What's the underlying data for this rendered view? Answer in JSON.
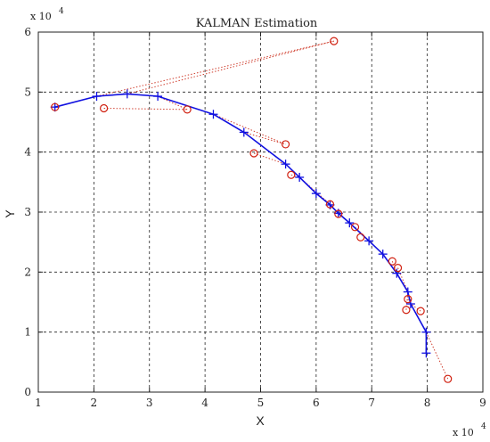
{
  "chart_data": {
    "type": "line",
    "title": "KALMAN Estimation",
    "xlabel": "X",
    "ylabel": "Y",
    "x_multiplier_label": "x 10",
    "x_multiplier_exponent": "4",
    "y_multiplier_label": "x 10",
    "y_multiplier_exponent": "4",
    "xlim": [
      1,
      9
    ],
    "ylim": [
      0,
      6
    ],
    "x_ticks": [
      1,
      2,
      3,
      4,
      5,
      6,
      7,
      8,
      9
    ],
    "y_ticks": [
      0,
      1,
      2,
      3,
      4,
      5,
      6
    ],
    "grid": true,
    "colors": {
      "estimate": "#1010e0",
      "measurement": "#d02010",
      "link": "#d04030"
    },
    "series": [
      {
        "marker": "plus",
        "style": "solid",
        "points": [
          [
            1.3,
            4.75
          ],
          [
            2.05,
            4.93
          ],
          [
            2.6,
            4.97
          ],
          [
            3.15,
            4.93
          ],
          [
            4.15,
            4.63
          ],
          [
            4.7,
            4.33
          ],
          [
            5.45,
            3.8
          ],
          [
            5.7,
            3.58
          ],
          [
            6.0,
            3.31
          ],
          [
            6.25,
            3.12
          ],
          [
            6.4,
            2.98
          ],
          [
            6.6,
            2.82
          ],
          [
            6.95,
            2.52
          ],
          [
            7.2,
            2.3
          ],
          [
            7.45,
            1.98
          ],
          [
            7.65,
            1.67
          ],
          [
            7.7,
            1.47
          ],
          [
            7.98,
            1.0
          ],
          [
            7.98,
            0.65
          ]
        ]
      },
      {
        "marker": "circle",
        "style": "none",
        "points": [
          [
            1.3,
            4.75
          ],
          [
            2.18,
            4.73
          ],
          [
            3.68,
            4.71
          ],
          [
            6.32,
            5.85
          ],
          [
            5.45,
            4.13
          ],
          [
            4.88,
            3.98
          ],
          [
            5.55,
            3.62
          ],
          [
            6.25,
            3.13
          ],
          [
            6.4,
            2.97
          ],
          [
            6.7,
            2.75
          ],
          [
            6.8,
            2.58
          ],
          [
            7.37,
            2.18
          ],
          [
            7.47,
            2.07
          ],
          [
            7.65,
            1.55
          ],
          [
            7.62,
            1.37
          ],
          [
            7.88,
            1.35
          ],
          [
            8.37,
            0.22
          ]
        ]
      }
    ],
    "links": [
      [
        [
          2.6,
          4.97
        ],
        [
          6.32,
          5.85
        ]
      ],
      [
        [
          2.05,
          4.93
        ],
        [
          6.32,
          5.85
        ]
      ],
      [
        [
          2.18,
          4.73
        ],
        [
          3.68,
          4.71
        ]
      ],
      [
        [
          3.15,
          4.93
        ],
        [
          3.68,
          4.71
        ]
      ],
      [
        [
          4.15,
          4.63
        ],
        [
          5.45,
          4.13
        ]
      ],
      [
        [
          4.7,
          4.33
        ],
        [
          5.45,
          4.13
        ]
      ],
      [
        [
          4.88,
          3.98
        ],
        [
          5.45,
          3.8
        ]
      ],
      [
        [
          5.55,
          3.62
        ],
        [
          5.7,
          3.58
        ]
      ],
      [
        [
          5.7,
          3.58
        ],
        [
          6.25,
          3.13
        ]
      ],
      [
        [
          6.4,
          2.97
        ],
        [
          6.6,
          2.82
        ]
      ],
      [
        [
          6.7,
          2.75
        ],
        [
          6.95,
          2.52
        ]
      ],
      [
        [
          7.37,
          2.18
        ],
        [
          7.45,
          1.98
        ]
      ],
      [
        [
          7.47,
          2.07
        ],
        [
          7.65,
          1.67
        ]
      ],
      [
        [
          7.65,
          1.55
        ],
        [
          7.7,
          1.47
        ]
      ],
      [
        [
          7.62,
          1.37
        ],
        [
          7.65,
          1.67
        ]
      ],
      [
        [
          7.88,
          1.35
        ],
        [
          7.7,
          1.47
        ]
      ],
      [
        [
          8.37,
          0.22
        ],
        [
          7.98,
          1.0
        ]
      ]
    ]
  }
}
